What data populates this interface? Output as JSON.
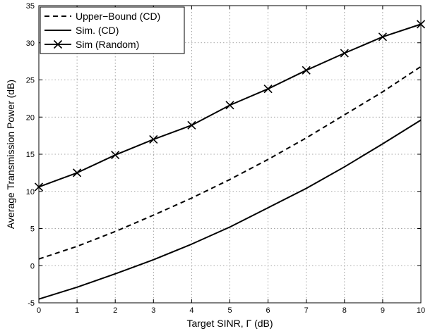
{
  "chart_data": {
    "type": "line",
    "xlabel": "Target SINR, Γ (dB)",
    "ylabel": "Average Transmission Power (dB)",
    "xlim": [
      0,
      10
    ],
    "ylim": [
      -5,
      35
    ],
    "xticks": [
      0,
      1,
      2,
      3,
      4,
      5,
      6,
      7,
      8,
      9,
      10
    ],
    "yticks": [
      -5,
      0,
      5,
      10,
      15,
      20,
      25,
      30,
      35
    ],
    "grid": true,
    "legend_position": "top-left",
    "x": [
      0,
      1,
      2,
      3,
      4,
      5,
      6,
      7,
      8,
      9,
      10
    ],
    "series": [
      {
        "name": "Upper−Bound (CD)",
        "style": "dashed",
        "marker": "none",
        "color": "#000000",
        "values": [
          0.9,
          2.6,
          4.6,
          6.8,
          9.1,
          11.6,
          14.3,
          17.2,
          20.3,
          23.4,
          26.8
        ]
      },
      {
        "name": "Sim. (CD)",
        "style": "solid",
        "marker": "none",
        "color": "#000000",
        "values": [
          -4.5,
          -2.9,
          -1.1,
          0.8,
          2.9,
          5.2,
          7.8,
          10.4,
          13.3,
          16.4,
          19.6
        ]
      },
      {
        "name": "Sim (Random)",
        "style": "solid",
        "marker": "x",
        "color": "#000000",
        "values": [
          10.6,
          12.5,
          14.9,
          17.0,
          18.9,
          21.6,
          23.8,
          26.3,
          28.6,
          30.8,
          32.5
        ]
      }
    ]
  }
}
